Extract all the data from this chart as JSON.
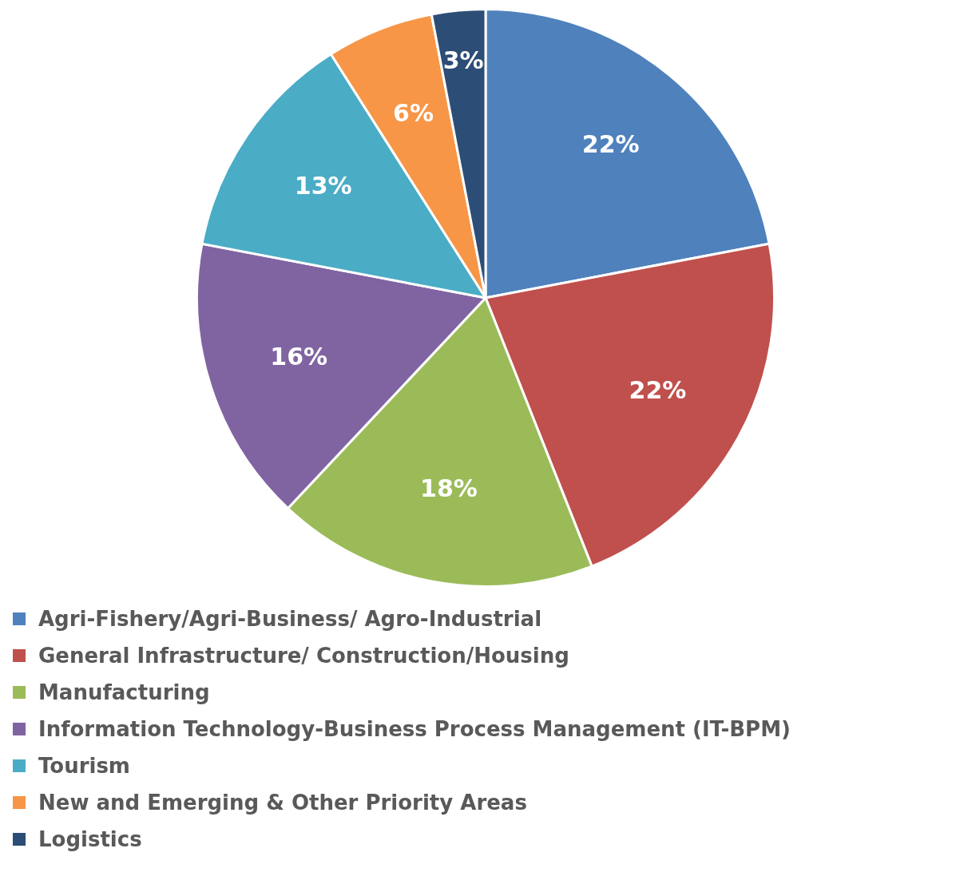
{
  "chart_data": {
    "type": "pie",
    "categories": [
      "Agri-Fishery/Agri-Business/ Agro-Industrial",
      "General Infrastructure/ Construction/Housing",
      "Manufacturing",
      "Information Technology-Business Process Management (IT-BPM)",
      "Tourism",
      "New and Emerging & Other Priority Areas",
      "Logistics"
    ],
    "values": [
      22,
      22,
      18,
      16,
      13,
      6,
      3
    ],
    "colors": [
      "#4f81bd",
      "#c0504d",
      "#9bbb59",
      "#8064a2",
      "#4bacc6",
      "#f79646",
      "#2c4d75"
    ],
    "value_labels": [
      "22%",
      "22%",
      "18%",
      "16%",
      "13%",
      "6%",
      "3%"
    ],
    "legend": "bottom"
  }
}
